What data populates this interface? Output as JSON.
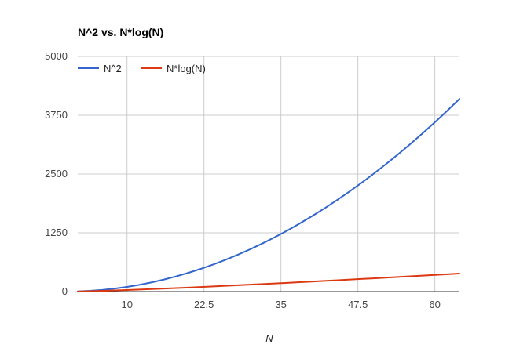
{
  "chart_data": {
    "type": "line",
    "title": "N^2 vs. N*log(N)",
    "xlabel": "N",
    "ylabel": "",
    "xlim": [
      2,
      64
    ],
    "ylim": [
      0,
      5000
    ],
    "x_ticks": [
      "10",
      "22.5",
      "35",
      "47.5",
      "60"
    ],
    "y_ticks": [
      "0",
      "1250",
      "2500",
      "3750",
      "5000"
    ],
    "grid": true,
    "legend_position": "top-left",
    "series": [
      {
        "name": "N^2",
        "color": "#3366cc",
        "x": [
          2,
          4,
          6,
          8,
          10,
          12,
          14,
          16,
          18,
          20,
          22,
          24,
          26,
          28,
          30,
          32,
          34,
          36,
          38,
          40,
          42,
          44,
          46,
          48,
          50,
          52,
          54,
          56,
          58,
          60,
          62,
          64
        ],
        "y": [
          4,
          16,
          36,
          64,
          100,
          144,
          196,
          256,
          324,
          400,
          484,
          576,
          676,
          784,
          900,
          1024,
          1156,
          1296,
          1444,
          1600,
          1764,
          1936,
          2116,
          2304,
          2500,
          2704,
          2916,
          3136,
          3364,
          3600,
          3844,
          4096
        ]
      },
      {
        "name": "N*log(N)",
        "color": "#dc3912",
        "x": [
          2,
          4,
          6,
          8,
          10,
          12,
          14,
          16,
          18,
          20,
          22,
          24,
          26,
          28,
          30,
          32,
          34,
          36,
          38,
          40,
          42,
          44,
          46,
          48,
          50,
          52,
          54,
          56,
          58,
          60,
          62,
          64
        ],
        "y": [
          2,
          8,
          15.5,
          24,
          33.2,
          43,
          53.3,
          64,
          75.1,
          86.4,
          98.1,
          110,
          122.2,
          134.6,
          147.2,
          160,
          173,
          186.1,
          199.4,
          212.9,
          226.5,
          240.2,
          254.1,
          268.1,
          282.2,
          296.4,
          310.7,
          325.2,
          339.8,
          354.4,
          369.1,
          384
        ]
      }
    ]
  }
}
